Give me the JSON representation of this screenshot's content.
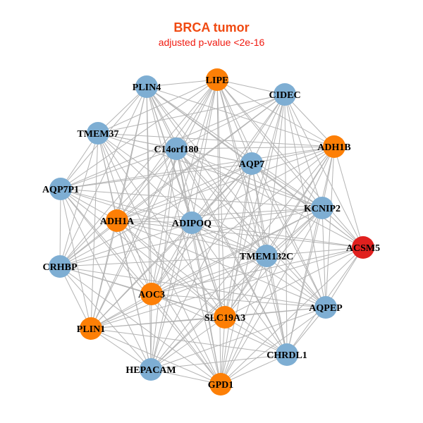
{
  "title": "BRCA tumor",
  "subtitle": "adjusted p-value <2e-16",
  "colors": {
    "blue": "#7eaed3",
    "orange": "#fd7f06",
    "red": "#e0201e",
    "edge": "#b4b4b4"
  },
  "nodes": [
    {
      "label": "PLIN4",
      "group": "blue"
    },
    {
      "label": "LIPE",
      "group": "orange"
    },
    {
      "label": "CIDEC",
      "group": "blue"
    },
    {
      "label": "TMEM37",
      "group": "blue"
    },
    {
      "label": "C14orf180",
      "group": "blue"
    },
    {
      "label": "ADH1B",
      "group": "orange"
    },
    {
      "label": "AQP7",
      "group": "blue"
    },
    {
      "label": "AQP7P1",
      "group": "blue"
    },
    {
      "label": "KCNIP2",
      "group": "blue"
    },
    {
      "label": "ADH1A",
      "group": "orange"
    },
    {
      "label": "ADIPOQ",
      "group": "blue"
    },
    {
      "label": "ACSM5",
      "group": "red"
    },
    {
      "label": "CRHBP",
      "group": "blue"
    },
    {
      "label": "TMEM132C",
      "group": "blue"
    },
    {
      "label": "AOC3",
      "group": "orange"
    },
    {
      "label": "AQPEP",
      "group": "blue"
    },
    {
      "label": "SLC19A3",
      "group": "orange"
    },
    {
      "label": "PLIN1",
      "group": "orange"
    },
    {
      "label": "CHRDL1",
      "group": "blue"
    },
    {
      "label": "HEPACAM",
      "group": "blue"
    },
    {
      "label": "GPD1",
      "group": "orange"
    }
  ],
  "edges_default": "all-pairs",
  "non_edges": [
    [
      0,
      2
    ],
    [
      3,
      11
    ],
    [
      7,
      11
    ],
    [
      12,
      11
    ],
    [
      7,
      15
    ],
    [
      3,
      15
    ],
    [
      12,
      5
    ],
    [
      17,
      5
    ],
    [
      17,
      2
    ],
    [
      19,
      2
    ],
    [
      19,
      11
    ],
    [
      7,
      18
    ],
    [
      12,
      18
    ],
    [
      3,
      18
    ]
  ]
}
